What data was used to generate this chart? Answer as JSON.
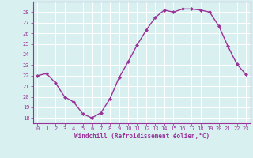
{
  "x": [
    0,
    1,
    2,
    3,
    4,
    5,
    6,
    7,
    8,
    9,
    10,
    11,
    12,
    13,
    14,
    15,
    16,
    17,
    18,
    19,
    20,
    21,
    22,
    23
  ],
  "y": [
    22.0,
    22.2,
    21.3,
    20.0,
    19.5,
    18.4,
    18.0,
    18.5,
    19.8,
    21.8,
    23.3,
    24.9,
    26.3,
    27.5,
    28.2,
    28.0,
    28.3,
    28.3,
    28.2,
    28.0,
    26.7,
    24.8,
    23.1,
    22.1
  ],
  "line_color": "#993399",
  "marker": "D",
  "markersize": 2.0,
  "linewidth": 1.0,
  "xlim": [
    -0.5,
    23.5
  ],
  "ylim": [
    17.5,
    29.0
  ],
  "yticks": [
    18,
    19,
    20,
    21,
    22,
    23,
    24,
    25,
    26,
    27,
    28
  ],
  "xticks": [
    0,
    1,
    2,
    3,
    4,
    5,
    6,
    7,
    8,
    9,
    10,
    11,
    12,
    13,
    14,
    15,
    16,
    17,
    18,
    19,
    20,
    21,
    22,
    23
  ],
  "xlabel": "Windchill (Refroidissement éolien,°C)",
  "background_color": "#d8f0f0",
  "grid_color": "#ffffff",
  "label_color": "#993399",
  "tick_color": "#993399",
  "spine_color": "#993399",
  "tick_fontsize": 5,
  "xlabel_fontsize": 5.5
}
